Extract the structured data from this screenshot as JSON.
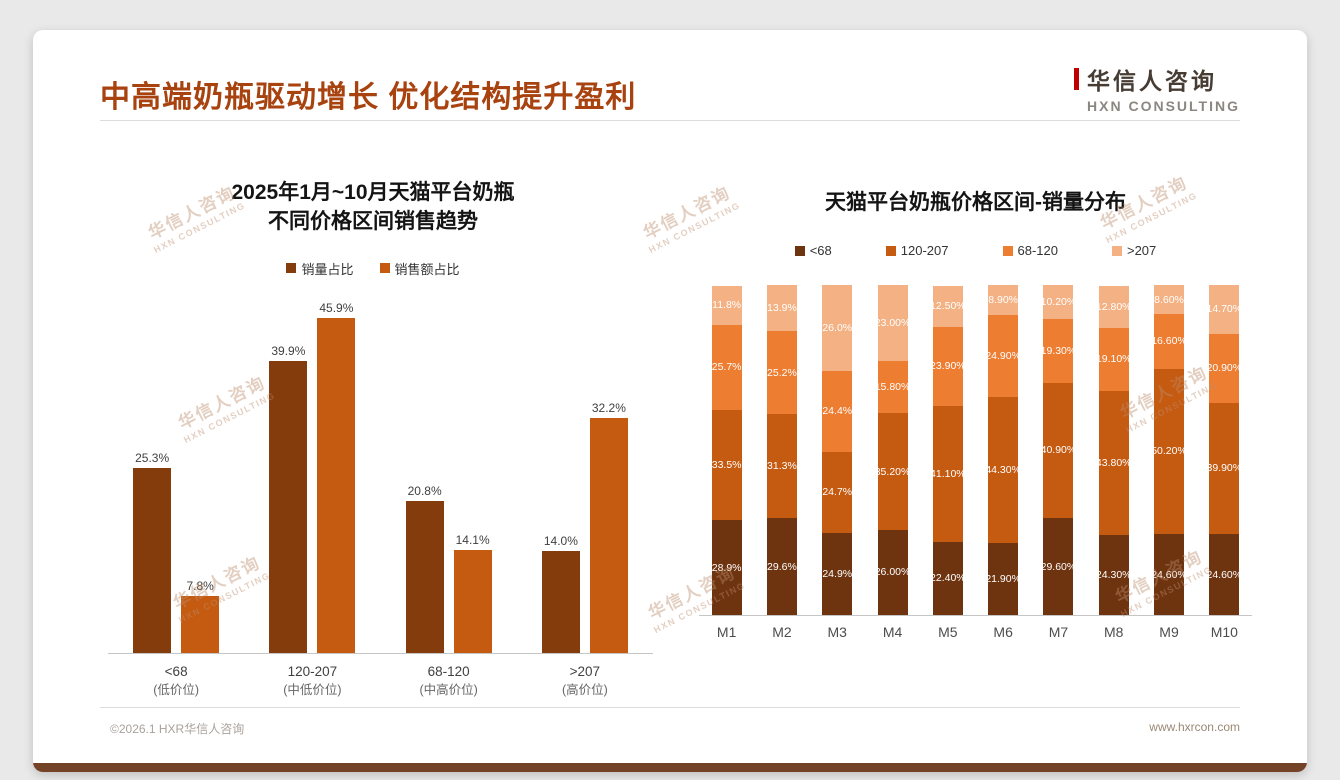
{
  "slide": {
    "title": "中高端奶瓶驱动增长 优化结构提升盈利",
    "footer_left": "©2026.1 HXR华信人咨询",
    "footer_right": "www.hxrcon.com"
  },
  "logo": {
    "name": "华信人咨询",
    "tagline": "HXN CONSULTING"
  },
  "watermark": {
    "text": "华信人咨询",
    "subtext": "HXN CONSULTING"
  },
  "colors": {
    "title_accent": "#A8430F",
    "dark_brown": "#843C0C",
    "stack_darkest": "#6E3410",
    "orange": "#C55A11",
    "light_orange": "#ED7D31",
    "peach": "#F4B183",
    "bottom_bar": "#744327"
  },
  "chart_data": [
    {
      "type": "bar",
      "title": "2025年1月~10月天猫平台奶瓶不同价格区间销售趋势",
      "title_line1": "2025年1月~10月天猫平台奶瓶",
      "title_line2": "不同价格区间销售趋势",
      "unit": "%",
      "ylim": [
        0,
        50
      ],
      "legend_position": "top",
      "categories": [
        {
          "label": "<68",
          "sublabel": "(低价位)"
        },
        {
          "label": "120-207",
          "sublabel": "(中低价位)"
        },
        {
          "label": "68-120",
          "sublabel": "(中高价位)"
        },
        {
          "label": ">207",
          "sublabel": "(高价位)"
        }
      ],
      "series": [
        {
          "name": "销量占比",
          "color": "#843C0C",
          "values": [
            25.3,
            39.9,
            20.8,
            14.0
          ],
          "labels": [
            "25.3%",
            "39.9%",
            "20.8%",
            "14.0%"
          ]
        },
        {
          "name": "销售额占比",
          "color": "#C55A11",
          "values": [
            7.8,
            45.9,
            14.1,
            32.2
          ],
          "labels": [
            "7.8%",
            "45.9%",
            "14.1%",
            "32.2%"
          ]
        }
      ]
    },
    {
      "type": "stacked-bar",
      "title": "天猫平台奶瓶价格区间-销量分布",
      "unit": "%",
      "ylim": [
        0,
        100
      ],
      "legend_position": "top",
      "categories": [
        "M1",
        "M2",
        "M3",
        "M4",
        "M5",
        "M6",
        "M7",
        "M8",
        "M9",
        "M10"
      ],
      "series": [
        {
          "name": "<68",
          "color": "#6E3410",
          "values": [
            28.9,
            29.6,
            24.9,
            26.0,
            22.4,
            21.9,
            29.6,
            24.3,
            24.6,
            24.6
          ],
          "labels": [
            "28.9%",
            "29.6%",
            "24.9%",
            "26.00%",
            "22.40%",
            "21.90%",
            "29.60%",
            "24.30%",
            "24.60%",
            "24.60%"
          ]
        },
        {
          "name": "120-207",
          "color": "#C55A11",
          "values": [
            33.5,
            31.3,
            24.7,
            35.2,
            41.1,
            44.3,
            40.9,
            43.8,
            50.2,
            39.9
          ],
          "labels": [
            "33.5%",
            "31.3%",
            "24.7%",
            "35.20%",
            "41.10%",
            "44.30%",
            "40.90%",
            "43.80%",
            "50.20%",
            "39.90%"
          ]
        },
        {
          "name": "68-120",
          "color": "#ED7D31",
          "values": [
            25.7,
            25.2,
            24.4,
            15.8,
            23.9,
            24.9,
            19.3,
            19.1,
            16.6,
            20.9
          ],
          "labels": [
            "25.7%",
            "25.2%",
            "24.4%",
            "15.80%",
            "23.90%",
            "24.90%",
            "19.30%",
            "19.10%",
            "16.60%",
            "20.90%"
          ]
        },
        {
          "name": ">207",
          "color": "#F4B183",
          "values": [
            11.8,
            13.9,
            26.0,
            23.0,
            12.5,
            8.9,
            10.2,
            12.8,
            8.6,
            14.7
          ],
          "labels": [
            "11.8%",
            "13.9%",
            "26.0%",
            "23.00%",
            "12.50%",
            "8.90%",
            "10.20%",
            "12.80%",
            "8.60%",
            "14.70%"
          ]
        }
      ]
    }
  ]
}
